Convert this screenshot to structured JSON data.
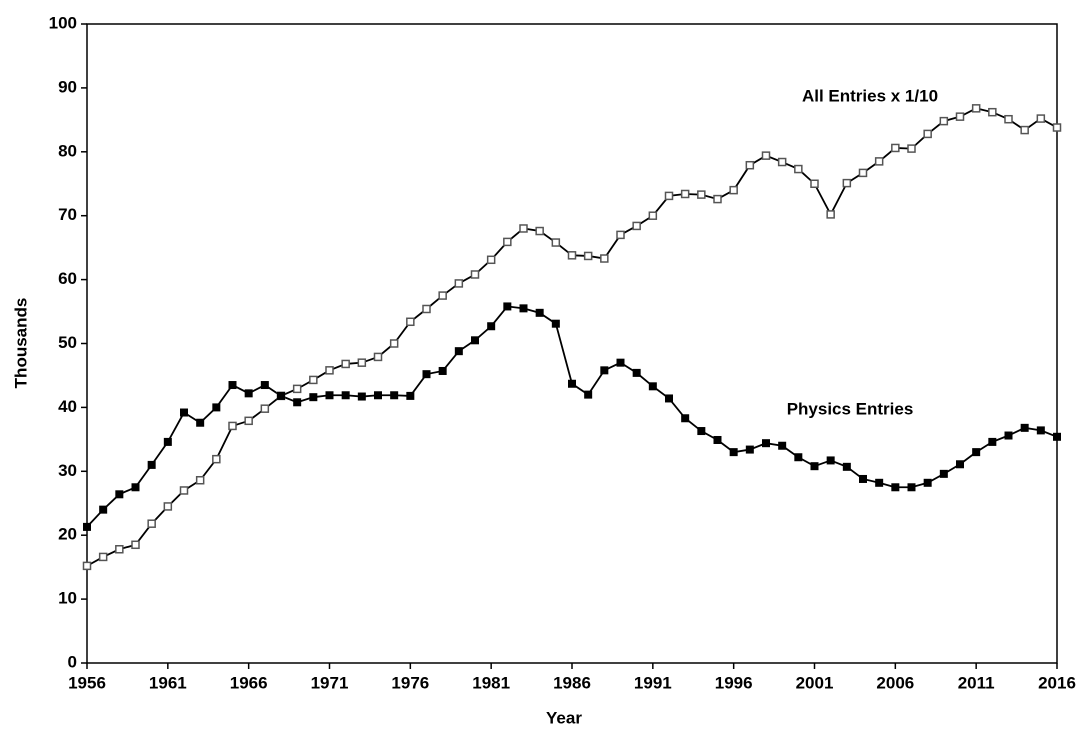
{
  "chart_data": {
    "type": "line",
    "xlabel": "Year",
    "ylabel": "Thousands",
    "x": [
      1956,
      1957,
      1958,
      1959,
      1960,
      1961,
      1962,
      1963,
      1964,
      1965,
      1966,
      1967,
      1968,
      1969,
      1970,
      1971,
      1972,
      1973,
      1974,
      1975,
      1976,
      1977,
      1978,
      1979,
      1980,
      1981,
      1982,
      1983,
      1984,
      1985,
      1986,
      1987,
      1988,
      1989,
      1990,
      1991,
      1992,
      1993,
      1994,
      1995,
      1996,
      1997,
      1998,
      1999,
      2000,
      2001,
      2002,
      2003,
      2004,
      2005,
      2006,
      2007,
      2008,
      2009,
      2010,
      2011,
      2012,
      2013,
      2014,
      2015,
      2016
    ],
    "series": [
      {
        "name": "All Entries x 1/10",
        "color": "#555555",
        "marker": "hollow",
        "values": [
          15.2,
          16.6,
          17.8,
          18.5,
          21.8,
          24.5,
          27.0,
          28.6,
          31.9,
          37.1,
          37.9,
          39.8,
          41.8,
          42.9,
          44.3,
          45.8,
          46.8,
          47.0,
          47.9,
          50.0,
          53.4,
          55.4,
          57.5,
          59.4,
          60.8,
          63.1,
          65.9,
          68.0,
          67.6,
          65.8,
          63.8,
          63.7,
          63.3,
          67.0,
          68.4,
          70.0,
          73.1,
          73.4,
          73.3,
          72.6,
          74.0,
          77.9,
          79.4,
          78.4,
          77.3,
          75.0,
          70.2,
          75.1,
          76.7,
          78.5,
          80.6,
          80.5,
          82.8,
          84.8,
          85.5,
          86.8,
          86.2,
          85.1,
          83.4,
          85.2,
          83.8
        ]
      },
      {
        "name": "Physics Entries",
        "color": "#000000",
        "marker": "filled",
        "values": [
          21.3,
          24.0,
          26.4,
          27.5,
          31.0,
          34.6,
          39.2,
          37.6,
          40.0,
          43.5,
          42.2,
          43.5,
          41.8,
          40.8,
          41.6,
          41.9,
          41.9,
          41.7,
          41.9,
          41.9,
          41.8,
          45.2,
          45.7,
          48.8,
          50.5,
          52.7,
          55.8,
          55.5,
          54.8,
          53.1,
          43.7,
          42.0,
          45.8,
          47.0,
          45.4,
          43.3,
          41.4,
          38.3,
          36.3,
          34.9,
          33.0,
          33.4,
          34.4,
          34.0,
          32.2,
          30.8,
          31.7,
          30.7,
          28.8,
          28.2,
          27.5,
          27.5,
          28.2,
          29.6,
          31.1,
          33.0,
          34.6,
          35.6,
          36.8,
          36.4,
          35.4
        ]
      }
    ],
    "xlim": [
      1956,
      2016
    ],
    "xticks": [
      1956,
      1961,
      1966,
      1971,
      1976,
      1981,
      1986,
      1991,
      1996,
      2001,
      2006,
      2011,
      2016
    ],
    "ylim": [
      0,
      100
    ],
    "yticks": [
      0,
      10,
      20,
      30,
      40,
      50,
      60,
      70,
      80,
      90,
      100
    ],
    "grid": false
  }
}
